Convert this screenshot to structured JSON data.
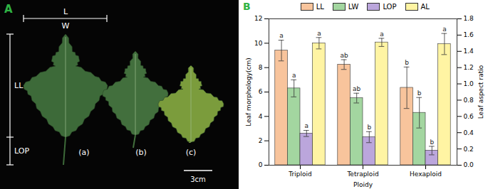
{
  "panel_a": {
    "label": "A",
    "width_labels": [
      "L",
      "W"
    ],
    "length_labels": [
      "LL",
      "LOP"
    ],
    "leaf_labels": [
      "(a)",
      "(b)",
      "(c)"
    ],
    "scale_bar": "3cm"
  },
  "chart_data": {
    "type": "bar",
    "panel_label": "B",
    "x_label": "Ploidy",
    "y_label": "Leaf morphology(cm)",
    "y2_label": "Leaf aspect ratio",
    "categories": [
      "Triploid",
      "Tetraploid",
      "Hexaploid"
    ],
    "ylim": [
      0,
      12
    ],
    "yticks": [
      0,
      2,
      4,
      6,
      8,
      10,
      12
    ],
    "y2lim": [
      0,
      1.8
    ],
    "y2ticks": [
      {
        "value": 0,
        "label": "0.0"
      },
      0.2,
      0.4,
      0.6,
      0.8,
      {
        "value": 1,
        "label": "1.0"
      },
      1.2,
      1.4,
      1.6,
      1.8
    ],
    "legend": "top",
    "series": [
      {
        "name": "LL",
        "color": "#f8c49c",
        "values": [
          9.4,
          8.25,
          6.35
        ],
        "errors": [
          0.85,
          0.4,
          1.7
        ],
        "significance": [
          "a",
          "ab",
          "b"
        ]
      },
      {
        "name": "LW",
        "color": "#a3d6a0",
        "values": [
          6.3,
          5.5,
          4.3
        ],
        "errors": [
          0.7,
          0.4,
          1.25
        ],
        "significance": [
          "a",
          "ab",
          "b"
        ]
      },
      {
        "name": "LOP",
        "color": "#bba6dc",
        "values": [
          2.6,
          2.3,
          1.2
        ],
        "errors": [
          0.25,
          0.45,
          0.35
        ],
        "significance": [
          "a",
          "b",
          "b"
        ]
      },
      {
        "name": "AL",
        "color": "#fff4a3",
        "axis": "y2",
        "values": [
          1.5,
          1.51,
          1.49
        ],
        "errors": [
          0.07,
          0.05,
          0.13
        ],
        "significance": [
          "a",
          "a",
          "a"
        ]
      }
    ]
  }
}
